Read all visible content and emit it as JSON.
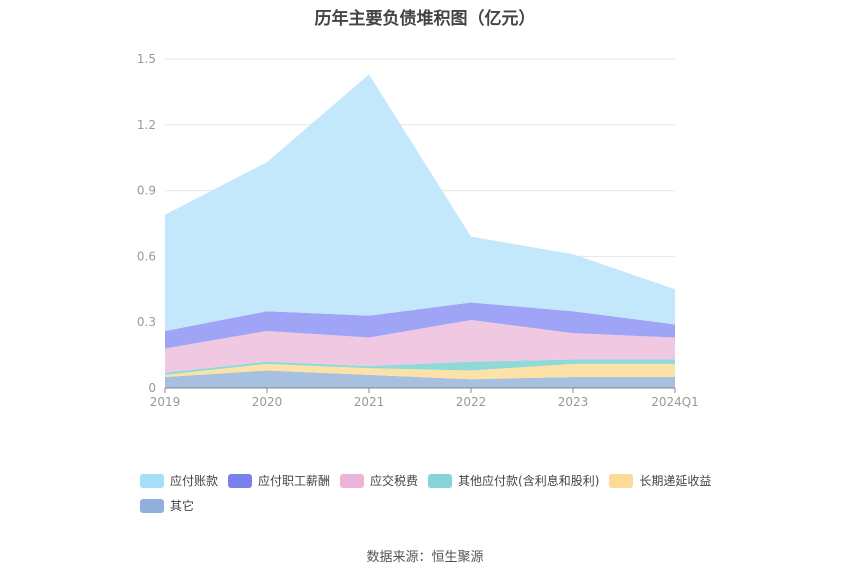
{
  "chart_data": {
    "type": "area",
    "stacked": true,
    "title": "历年主要负债堆积图（亿元）",
    "categories": [
      "2019",
      "2020",
      "2021",
      "2022",
      "2023",
      "2024Q1"
    ],
    "ylim": [
      0,
      1.5
    ],
    "yticks": [
      "0",
      "0.3",
      "0.6",
      "0.9",
      "1.2",
      "1.5"
    ],
    "grid": true,
    "legend_position": "bottom",
    "series": [
      {
        "name": "其它",
        "color": "#a8c0e0",
        "values": [
          0.05,
          0.08,
          0.06,
          0.04,
          0.05,
          0.05
        ]
      },
      {
        "name": "长期递延收益",
        "color": "#fde2a8",
        "values": [
          0.01,
          0.03,
          0.03,
          0.04,
          0.06,
          0.06
        ]
      },
      {
        "name": "其他应付款(含利息和股利)",
        "color": "#8fd9d9",
        "values": [
          0.01,
          0.01,
          0.01,
          0.04,
          0.02,
          0.02
        ]
      },
      {
        "name": "应交税费",
        "color": "#f0c8e2",
        "values": [
          0.11,
          0.14,
          0.13,
          0.19,
          0.12,
          0.1
        ]
      },
      {
        "name": "应付职工薪酬",
        "color": "#a0a4f6",
        "values": [
          0.08,
          0.09,
          0.1,
          0.08,
          0.1,
          0.06
        ]
      },
      {
        "name": "应付账款",
        "color": "#c3e8fb",
        "values": [
          0.53,
          0.68,
          1.1,
          0.3,
          0.26,
          0.16
        ]
      }
    ]
  },
  "legend": {
    "items": [
      {
        "label": "应付账款",
        "color": "#a6def8"
      },
      {
        "label": "应付职工薪酬",
        "color": "#7b7ff0"
      },
      {
        "label": "应交税费",
        "color": "#ebb4d8"
      },
      {
        "label": "其他应付款(含利息和股利)",
        "color": "#86d4d6"
      },
      {
        "label": "长期递延收益",
        "color": "#fdd99a"
      },
      {
        "label": "其它",
        "color": "#8fafdc"
      }
    ]
  },
  "source": "数据来源：恒生聚源"
}
